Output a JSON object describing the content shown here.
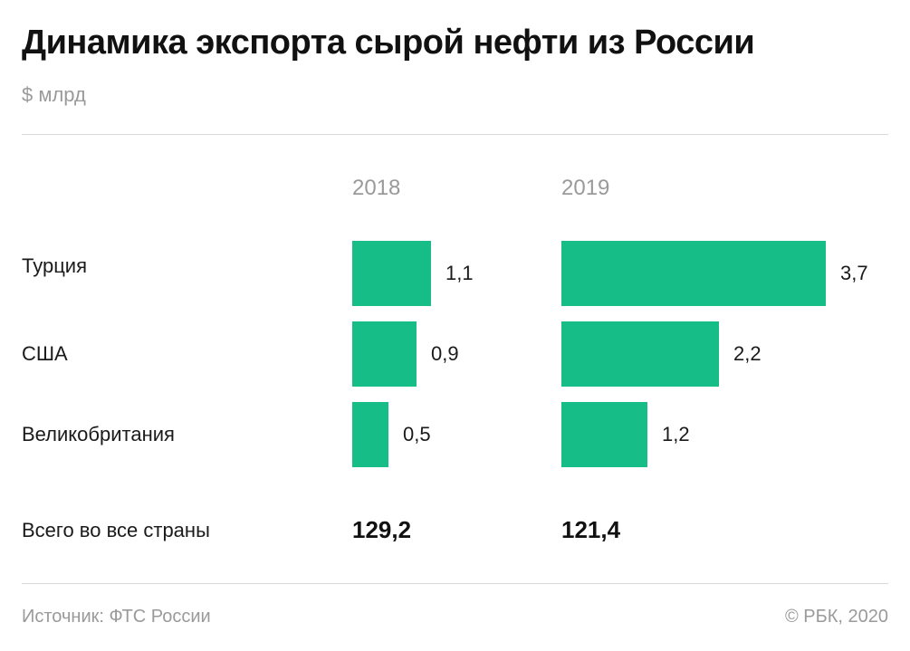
{
  "header": {
    "title": "Динамика экспорта сырой нефти из России",
    "subtitle": "$ млрд"
  },
  "chart_data": {
    "type": "bar",
    "orientation": "horizontal",
    "title": "Динамика экспорта сырой нефти из России",
    "unit": "$ млрд",
    "categories": [
      "Турция",
      "США",
      "Великобритания"
    ],
    "series": [
      {
        "name": "2018",
        "values": [
          1.1,
          0.9,
          0.5
        ],
        "labels": [
          "1,1",
          "0,9",
          "0,5"
        ],
        "total": "129,2"
      },
      {
        "name": "2019",
        "values": [
          3.7,
          2.2,
          1.2
        ],
        "labels": [
          "3,7",
          "2,2",
          "1,2"
        ],
        "total": "121,4"
      }
    ],
    "total_label": "Всего во все страны",
    "bar_color": "#17bd87",
    "grid": false,
    "legend": "none"
  },
  "footer": {
    "source": "Источник: ФТС России",
    "copyright": "© РБК, 2020"
  }
}
